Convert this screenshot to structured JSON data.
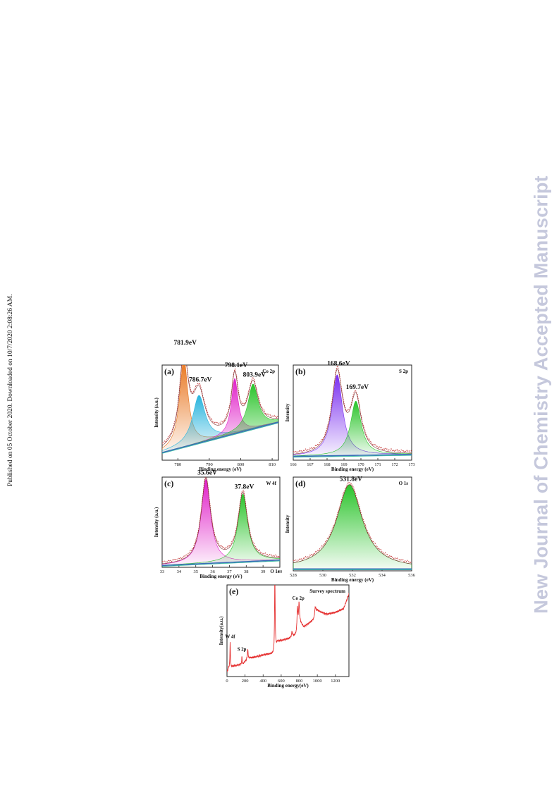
{
  "page": {
    "side_note": "Published on 05 October 2020. Downloaded on 10/7/2020 2:08:26 AM.",
    "watermark": "New Journal of Chemistry Accepted Manuscript"
  },
  "chart_data": [
    {
      "id": "a",
      "type": "area",
      "panel_label": "(a)",
      "element_label": "Co 2p",
      "xlabel": "Binding energy (eV)",
      "ylabel": "Intensity (a.u.)",
      "xlim": [
        775,
        812
      ],
      "ylim": [
        0,
        1.0
      ],
      "xticks": [
        780,
        790,
        800,
        810
      ],
      "background": [
        [
          775,
          0.08
        ],
        [
          812,
          0.4
        ]
      ],
      "peaks": [
        {
          "center": 781.9,
          "height": 0.93,
          "width": 1.6,
          "color": "#e8731b",
          "label": "781.9eV"
        },
        {
          "center": 786.7,
          "height": 0.5,
          "width": 2.4,
          "color": "#29b4dd",
          "label": "786.7eV"
        },
        {
          "center": 798.1,
          "height": 0.58,
          "width": 1.3,
          "color": "#e01fc8",
          "label": "798.1eV"
        },
        {
          "center": 803.9,
          "height": 0.47,
          "width": 2.0,
          "color": "#2bc42b",
          "label": "803.9eV"
        }
      ]
    },
    {
      "id": "b",
      "type": "area",
      "panel_label": "(b)",
      "element_label": "S 2p",
      "xlabel": "Binding energy (eV)",
      "ylabel": "Intensity",
      "xlim": [
        166,
        173
      ],
      "ylim": [
        0,
        1.0
      ],
      "xticks": [
        166,
        167,
        168,
        169,
        170,
        171,
        172,
        173
      ],
      "background": [
        [
          166,
          0.04
        ],
        [
          173,
          0.06
        ]
      ],
      "peaks": [
        {
          "center": 168.6,
          "height": 0.85,
          "width": 0.38,
          "color": "#7b2ff0",
          "label": "168.6eV"
        },
        {
          "center": 169.7,
          "height": 0.57,
          "width": 0.38,
          "color": "#2bc42b",
          "label": "169.7eV"
        }
      ]
    },
    {
      "id": "c",
      "type": "area",
      "panel_label": "(c)",
      "element_label": "W 4f",
      "xlabel": "Binding energy (eV)",
      "ylabel": "Intensity (a.u.)",
      "xlim": [
        33,
        40
      ],
      "ylim": [
        0,
        1.0
      ],
      "xticks": [
        33,
        34,
        35,
        36,
        37,
        38,
        39,
        40
      ],
      "background": [
        [
          33,
          0.02
        ],
        [
          40,
          0.08
        ]
      ],
      "peaks": [
        {
          "center": 35.6,
          "height": 0.93,
          "width": 0.34,
          "color": "#e01fc8",
          "label": "35.6eV"
        },
        {
          "center": 37.8,
          "height": 0.75,
          "width": 0.34,
          "color": "#2bc42b",
          "label": "37.8eV"
        }
      ]
    },
    {
      "id": "d",
      "type": "area",
      "panel_label": "(d)",
      "element_label": "O 1s",
      "xlabel": "Binding energy (eV)",
      "ylabel": "Intensity",
      "xlim": [
        528,
        536
      ],
      "ylim": [
        0,
        1.0
      ],
      "xticks": [
        528,
        530,
        532,
        534,
        536
      ],
      "background": [
        [
          528,
          0.02
        ],
        [
          536,
          0.02
        ]
      ],
      "peaks": [
        {
          "center": 531.8,
          "height": 0.9,
          "width": 1.05,
          "color": "#2bc42b",
          "label": "531.8eV"
        }
      ]
    },
    {
      "id": "e",
      "type": "line",
      "panel_label": "(e)",
      "element_label": "Survey spectrum",
      "xlabel": "Binding energy(eV)",
      "ylabel": "Intensity(a.u.)",
      "xlim": [
        0,
        1350
      ],
      "ylim": [
        0,
        1.0
      ],
      "xticks": [
        0,
        200,
        400,
        600,
        800,
        1000,
        1200
      ],
      "series_color": "#e53030",
      "baseline": [
        [
          0,
          0.05
        ],
        [
          20,
          0.1
        ],
        [
          180,
          0.14
        ],
        [
          230,
          0.2
        ],
        [
          300,
          0.21
        ],
        [
          420,
          0.24
        ],
        [
          520,
          0.25
        ],
        [
          560,
          0.38
        ],
        [
          700,
          0.42
        ],
        [
          780,
          0.46
        ],
        [
          800,
          0.6
        ],
        [
          850,
          0.54
        ],
        [
          960,
          0.62
        ],
        [
          1000,
          0.72
        ],
        [
          1100,
          0.68
        ],
        [
          1200,
          0.7
        ],
        [
          1290,
          0.74
        ],
        [
          1350,
          0.9
        ]
      ],
      "spikes": [
        {
          "position": 35,
          "height": 0.28,
          "width": 3
        },
        {
          "position": 165,
          "height": 0.08,
          "width": 3
        },
        {
          "position": 230,
          "height": 0.1,
          "width": 4
        },
        {
          "position": 530,
          "height": 0.82,
          "width": 4
        },
        {
          "position": 720,
          "height": 0.06,
          "width": 6
        },
        {
          "position": 780,
          "height": 0.28,
          "width": 6
        },
        {
          "position": 797,
          "height": 0.2,
          "width": 6
        },
        {
          "position": 978,
          "height": 0.1,
          "width": 8
        }
      ],
      "annotations": [
        {
          "text": "W 4f",
          "x": 35,
          "y": 0.42
        },
        {
          "text": "S 2p",
          "x": 165,
          "y": 0.28
        },
        {
          "text": "O 1s",
          "x": 530,
          "y": 1.13
        },
        {
          "text": "Co 2p",
          "x": 790,
          "y": 0.84
        }
      ]
    }
  ]
}
